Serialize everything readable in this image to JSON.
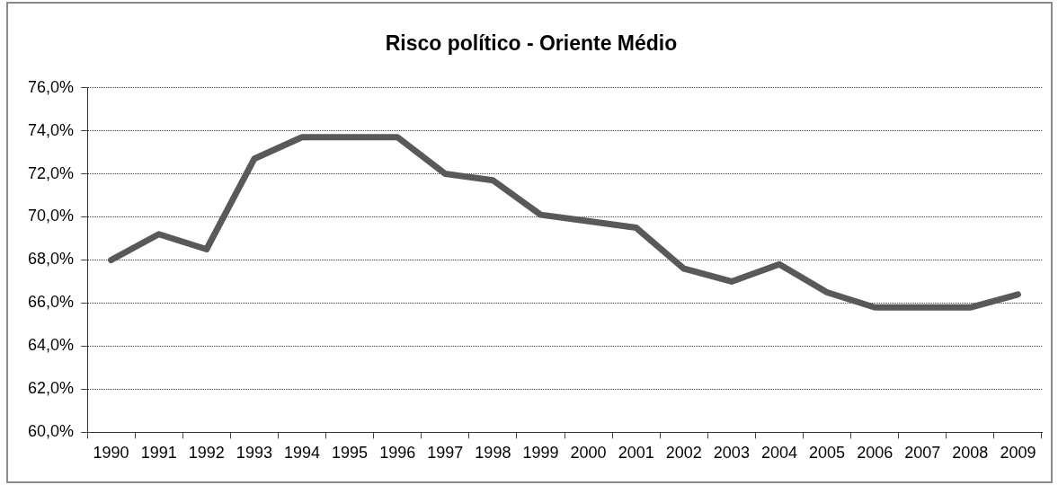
{
  "chart_data": {
    "type": "line",
    "title": "Risco político - Oriente Médio",
    "categories": [
      "1990",
      "1991",
      "1992",
      "1993",
      "1994",
      "1995",
      "1996",
      "1997",
      "1998",
      "1999",
      "2000",
      "2001",
      "2002",
      "2003",
      "2004",
      "2005",
      "2006",
      "2007",
      "2008",
      "2009"
    ],
    "values": [
      68.0,
      69.2,
      68.5,
      72.7,
      73.7,
      73.7,
      73.7,
      72.0,
      71.7,
      70.1,
      69.8,
      69.5,
      67.6,
      67.0,
      67.8,
      66.5,
      65.8,
      65.8,
      65.8,
      66.4
    ],
    "color": "#595959",
    "ylim": [
      60,
      76
    ],
    "yticks": [
      {
        "value": 60,
        "label": "60,0%"
      },
      {
        "value": 62,
        "label": "62,0%"
      },
      {
        "value": 64,
        "label": "64,0%"
      },
      {
        "value": 66,
        "label": "66,0%"
      },
      {
        "value": 68,
        "label": "68,0%"
      },
      {
        "value": 70,
        "label": "70,0%"
      },
      {
        "value": 72,
        "label": "72,0%"
      },
      {
        "value": 74,
        "label": "74,0%"
      },
      {
        "value": 76,
        "label": "76,0%"
      }
    ],
    "grid": "y",
    "legend": false,
    "marker": "none",
    "line_style": "solid"
  }
}
